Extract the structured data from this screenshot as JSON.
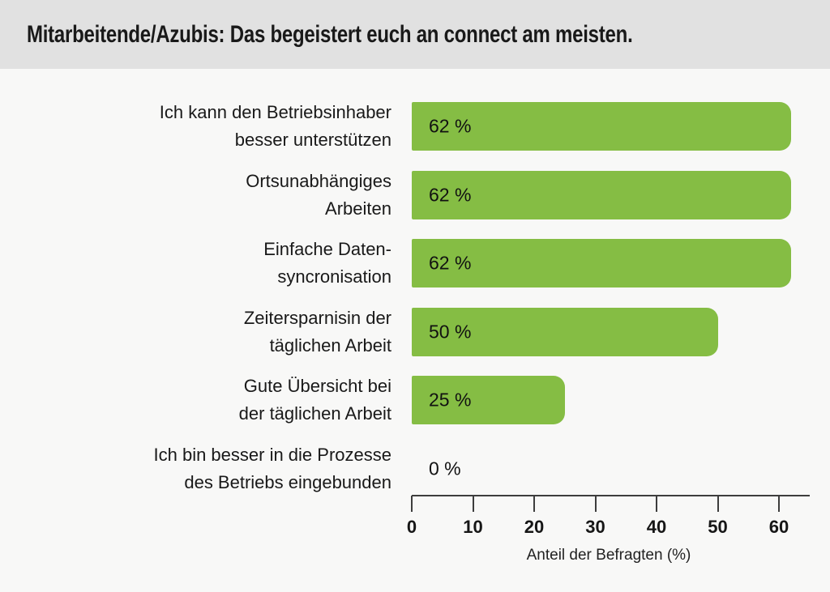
{
  "header": {
    "title": "Mitarbeitende/Azubis: Das begeistert euch an connect am meisten."
  },
  "chart_data": {
    "type": "bar",
    "orientation": "horizontal",
    "title": "Mitarbeitende/Azubis: Das begeistert euch an connect am meisten.",
    "categories": [
      "Ich kann den Betriebsinhaber\nbesser unterstützen",
      "Ortsunabhängiges\nArbeiten",
      "Einfache Daten-\nsyncronisation",
      "Zeitersparnisin der\ntäglichen Arbeit",
      "Gute Übersicht bei\nder täglichen Arbeit",
      "Ich bin besser in die Prozesse\ndes Betriebs eingebunden"
    ],
    "values": [
      62,
      62,
      62,
      50,
      25,
      0
    ],
    "value_labels": [
      "62 %",
      "62 %",
      "62 %",
      "50 %",
      "25 %",
      "0 %"
    ],
    "xlabel": "Anteil der Befragten (%)",
    "xticks": [
      0,
      10,
      20,
      30,
      40,
      50,
      60
    ],
    "xlim": [
      0,
      65
    ],
    "grid": false,
    "legend": false
  },
  "colors": {
    "bar": "#85bd44",
    "header_bg": "#e1e1e1",
    "page_bg": "#f8f8f7",
    "text": "#191919",
    "axis": "#3d3d3d"
  }
}
